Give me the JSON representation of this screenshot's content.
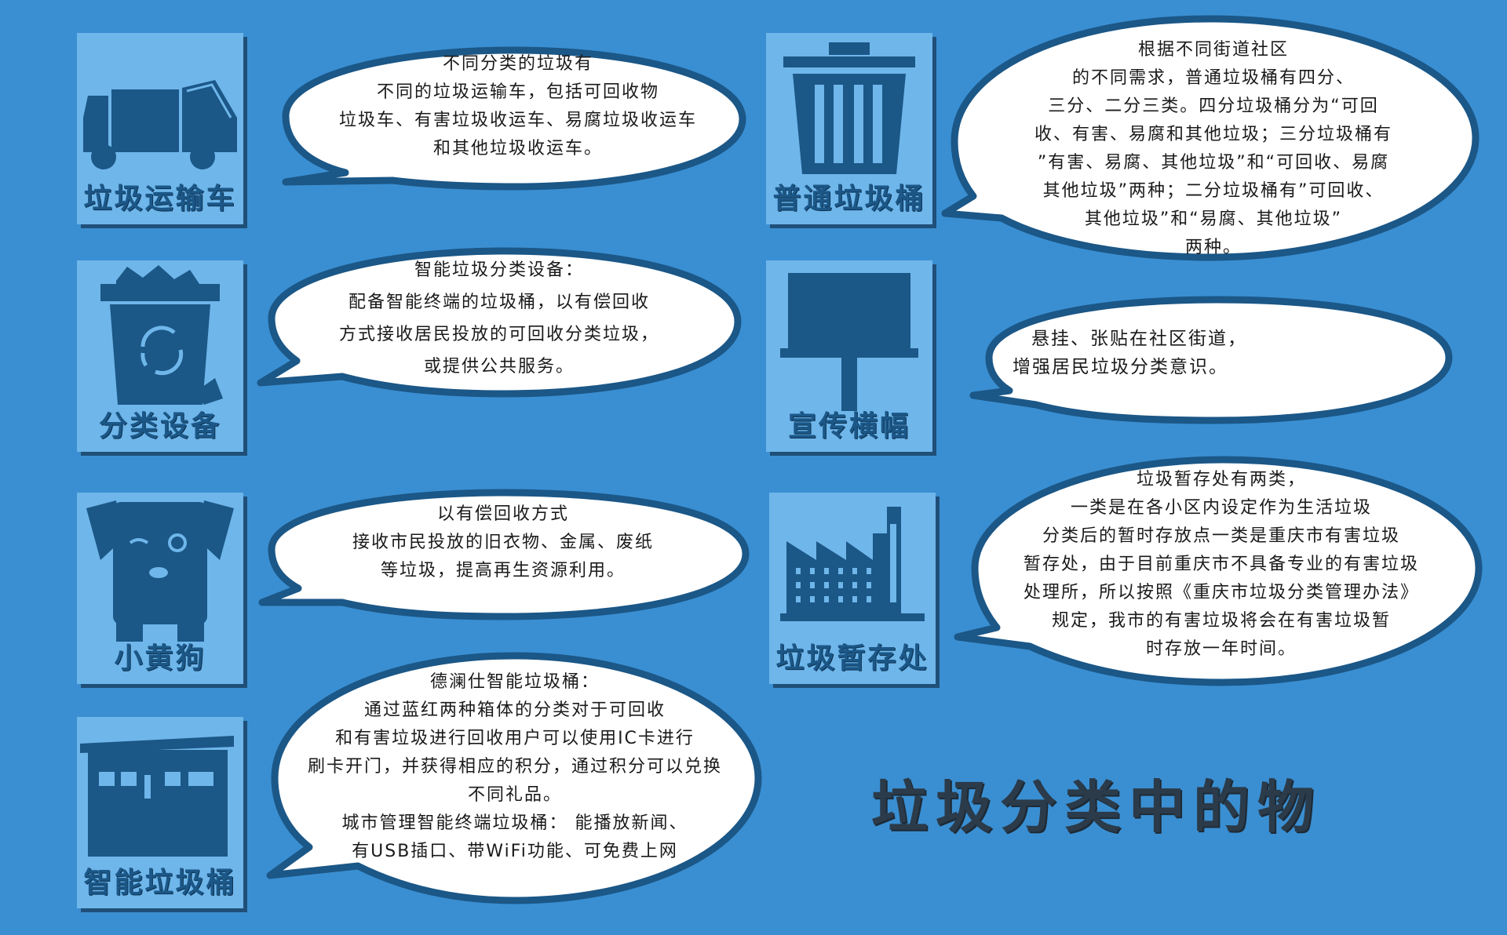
{
  "cards": {
    "truck": {
      "label": "垃圾运输车",
      "icon": "garbage-truck-icon"
    },
    "trashcan": {
      "label": "普通垃圾桶",
      "icon": "trash-can-icon"
    },
    "device": {
      "label": "分类设备",
      "icon": "recycle-bin-icon"
    },
    "banner": {
      "label": "宣传横幅",
      "icon": "banner-icon"
    },
    "dog": {
      "label": "小黄狗",
      "icon": "dog-icon"
    },
    "storage": {
      "label": "垃圾暂存处",
      "icon": "factory-icon"
    },
    "smartbin": {
      "label": "智能垃圾桶",
      "icon": "kiosk-icon"
    }
  },
  "bubbles": {
    "truck": [
      "不同分类的垃圾有",
      "不同的垃圾运输车，包括可回收物",
      "垃圾车、有害垃圾收运车、易腐垃圾收运车",
      "和其他垃圾收运车。"
    ],
    "trashcan": [
      "根据不同街道社区",
      "的不同需求，普通垃圾桶有四分、",
      "三分、二分三类。四分垃圾桶分为“可回",
      "收、有害、易腐和其他垃圾；三分垃圾桶有",
      "”有害、易腐、其他垃圾”和“可回收、易腐",
      "其他垃圾”两种；二分垃圾桶有”可回收、",
      "其他垃圾”和“易腐、其他垃圾”",
      "两种。"
    ],
    "device": [
      "智能垃圾分类设备：",
      "配备智能终端的垃圾桶，以有偿回收",
      "方式接收居民投放的可回收分类垃圾，",
      "或提供公共服务。"
    ],
    "banner": [
      "悬挂、张贴在社区街道，",
      "增强居民垃圾分类意识。"
    ],
    "dog": [
      "以有偿回收方式",
      "接收市民投放的旧衣物、金属、废纸",
      "等垃圾，提高再生资源利用。"
    ],
    "storage": [
      "垃圾暂存处有两类，",
      "一类是在各小区内设定作为生活垃圾",
      "分类后的暂时存放点一类是重庆市有害垃圾",
      "暂存处，由于目前重庆市不具备专业的有害垃圾",
      "处理所，所以按照《重庆市垃圾分类管理办法》",
      "规定，我市的有害垃圾将会在有害垃圾暂",
      "时存放一年时间。"
    ],
    "smartbin": [
      "德澜仕智能垃圾桶：",
      "通过蓝红两种箱体的分类对于可回收",
      "和有害垃圾进行回收用户可以使用IC卡进行",
      "刷卡开门，并获得相应的积分，通过积分可以兑换",
      "不同礼品。",
      "城市管理智能终端垃圾桶：  能播放新闻、",
      "有USB插口、带WiFi功能、可免费上网"
    ]
  },
  "title": "垃圾分类中的物",
  "colors": {
    "background": "#3a8fd2",
    "card": "#6fb6ea",
    "icon": "#1b5787",
    "bubble_border": "#1b5787",
    "bubble_fill": "#ffffff",
    "title": "#2b3b4a"
  }
}
